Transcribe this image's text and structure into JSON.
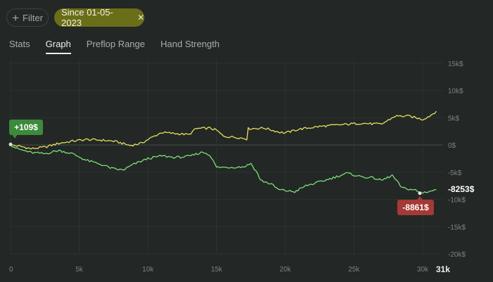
{
  "filter": {
    "label": "Filter",
    "icon": "plus-icon"
  },
  "chip": {
    "label": "Since 01-05-2023",
    "close_icon": "close-icon"
  },
  "tabs": [
    {
      "label": "Stats",
      "active": false
    },
    {
      "label": "Graph",
      "active": true
    },
    {
      "label": "Preflop Range",
      "active": false
    },
    {
      "label": "Hand Strength",
      "active": false
    }
  ],
  "colors": {
    "yellow": "#e6e060",
    "green": "#7ae079",
    "badge_green": "#3c8a3a",
    "badge_red": "#a33a35"
  },
  "chart_data": {
    "type": "line",
    "x_ticks": [
      "0",
      "5k",
      "10k",
      "15k",
      "20k",
      "25k",
      "30k"
    ],
    "x_end_label": "31k",
    "y_ticks": [
      "15k$",
      "10k$",
      "5k$",
      "0$",
      "-5k$",
      "-10k$",
      "-15k$",
      "-20k$"
    ],
    "xlim": [
      0,
      31000
    ],
    "ylim": [
      -20000,
      15000
    ],
    "series": [
      {
        "color": "yellow",
        "points": [
          [
            0,
            0
          ],
          [
            800,
            -300
          ],
          [
            1500,
            -700
          ],
          [
            2500,
            -400
          ],
          [
            3500,
            300
          ],
          [
            4500,
            700
          ],
          [
            5500,
            1000
          ],
          [
            6500,
            900
          ],
          [
            7500,
            700
          ],
          [
            8000,
            400
          ],
          [
            8700,
            -100
          ],
          [
            9500,
            300
          ],
          [
            10000,
            1000
          ],
          [
            11000,
            2300
          ],
          [
            12500,
            2000
          ],
          [
            13000,
            1900
          ],
          [
            13500,
            3000
          ],
          [
            14500,
            3100
          ],
          [
            15000,
            2700
          ],
          [
            15500,
            1600
          ],
          [
            16500,
            1400
          ],
          [
            17200,
            1100
          ],
          [
            17300,
            3000
          ],
          [
            18500,
            3100
          ],
          [
            19500,
            2400
          ],
          [
            20000,
            2200
          ],
          [
            21000,
            2900
          ],
          [
            22500,
            3400
          ],
          [
            24000,
            3700
          ],
          [
            25500,
            4000
          ],
          [
            27000,
            3800
          ],
          [
            28000,
            5300
          ],
          [
            29000,
            5300
          ],
          [
            30000,
            4700
          ],
          [
            30500,
            5300
          ],
          [
            31000,
            6200
          ]
        ]
      },
      {
        "color": "green",
        "points": [
          [
            0,
            0
          ],
          [
            500,
            -700
          ],
          [
            1500,
            -1400
          ],
          [
            2500,
            -1600
          ],
          [
            3500,
            -1000
          ],
          [
            4500,
            -1600
          ],
          [
            5500,
            -2800
          ],
          [
            6500,
            -3500
          ],
          [
            7500,
            -4400
          ],
          [
            8200,
            -4600
          ],
          [
            9000,
            -3500
          ],
          [
            10000,
            -2500
          ],
          [
            11000,
            -2000
          ],
          [
            12000,
            -2300
          ],
          [
            13000,
            -2100
          ],
          [
            14000,
            -1300
          ],
          [
            14500,
            -1800
          ],
          [
            15000,
            -4100
          ],
          [
            16000,
            -4100
          ],
          [
            17000,
            -4000
          ],
          [
            17500,
            -3400
          ],
          [
            18000,
            -5300
          ],
          [
            18200,
            -6500
          ],
          [
            19000,
            -7200
          ],
          [
            19500,
            -8200
          ],
          [
            20700,
            -8600
          ],
          [
            21500,
            -7500
          ],
          [
            22500,
            -6800
          ],
          [
            23500,
            -6000
          ],
          [
            24500,
            -5200
          ],
          [
            25500,
            -5800
          ],
          [
            26500,
            -6100
          ],
          [
            27000,
            -6500
          ],
          [
            27800,
            -5600
          ],
          [
            28500,
            -7900
          ],
          [
            29500,
            -8300
          ],
          [
            29800,
            -8861
          ],
          [
            30500,
            -8500
          ],
          [
            31000,
            -8253
          ]
        ]
      }
    ],
    "annotations": [
      {
        "text": "+109$",
        "x": 0,
        "y": 109,
        "color": "badge_green"
      },
      {
        "text": "-8861$",
        "x": 29800,
        "y": -8861,
        "color": "badge_red"
      },
      {
        "text": "-8253$",
        "x": 31000,
        "y": -8253,
        "color": "plain"
      }
    ]
  }
}
